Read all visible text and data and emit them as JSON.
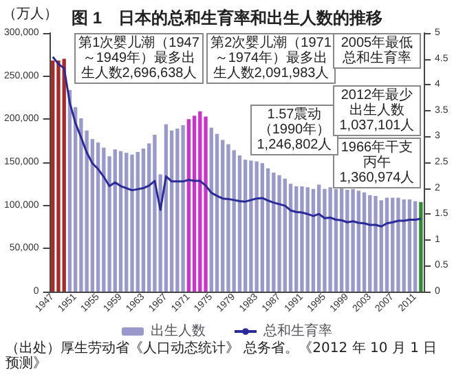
{
  "chart_data": {
    "type": "bar",
    "title": "图 1　日本的总和生育率和出生人数的推移",
    "ylabel": "（万人）",
    "categories": [
      "1947",
      null,
      null,
      null,
      "1951",
      null,
      null,
      null,
      "1955",
      null,
      null,
      null,
      "1959",
      null,
      null,
      null,
      "1963",
      null,
      null,
      null,
      "1967",
      null,
      null,
      null,
      "1971",
      null,
      null,
      null,
      "1975",
      null,
      null,
      null,
      "1979",
      null,
      null,
      null,
      "1983",
      null,
      null,
      null,
      "1987",
      null,
      null,
      null,
      "1991",
      null,
      null,
      null,
      "1995",
      null,
      null,
      null,
      "1999",
      null,
      null,
      null,
      "2003",
      null,
      null,
      null,
      "2007",
      null,
      null,
      null,
      "2011",
      null
    ],
    "series": [
      {
        "name": "出生人数",
        "color": "#9999cc",
        "colors": [
          "#a52a2a",
          "#a52a2a",
          "#a52a2a",
          "#9999cc",
          "#9999cc",
          "#9999cc",
          "#9999cc",
          "#9999cc",
          "#9999cc",
          "#9999cc",
          "#9999cc",
          "#9999cc",
          "#9999cc",
          "#9999cc",
          "#9999cc",
          "#9999cc",
          "#9999cc",
          "#9999cc",
          "#9999cc",
          "#9999cc",
          "#9999cc",
          "#9999cc",
          "#9999cc",
          "#9999cc",
          "#cc33cc",
          "#cc33cc",
          "#cc33cc",
          "#cc33cc",
          "#9999cc",
          "#9999cc",
          "#9999cc",
          "#9999cc",
          "#9999cc",
          "#9999cc",
          "#9999cc",
          "#9999cc",
          "#9999cc",
          "#9999cc",
          "#9999cc",
          "#9999cc",
          "#9999cc",
          "#9999cc",
          "#9999cc",
          "#9999cc",
          "#9999cc",
          "#9999cc",
          "#9999cc",
          "#9999cc",
          "#9999cc",
          "#9999cc",
          "#9999cc",
          "#9999cc",
          "#9999cc",
          "#9999cc",
          "#9999cc",
          "#9999cc",
          "#9999cc",
          "#9999cc",
          "#9999cc",
          "#9999cc",
          "#9999cc",
          "#9999cc",
          "#9999cc",
          "#9999cc",
          "#9999cc",
          "#2e8b2e"
        ],
        "values": [
          268000,
          268000,
          270000,
          234000,
          214000,
          201000,
          187000,
          177000,
          173000,
          167000,
          157000,
          165000,
          163000,
          161000,
          159000,
          162000,
          166000,
          172000,
          182000,
          136000,
          194000,
          187000,
          189000,
          193000,
          200000,
          204000,
          209000,
          203000,
          190000,
          183000,
          176000,
          171000,
          164000,
          158000,
          153000,
          152000,
          151000,
          149000,
          143000,
          138000,
          135000,
          131000,
          125000,
          122000,
          122000,
          121000,
          119000,
          124000,
          119000,
          121000,
          119000,
          120000,
          118000,
          119000,
          117000,
          115000,
          112000,
          111000,
          106000,
          109000,
          109000,
          109000,
          107000,
          107000,
          105000,
          104000
        ]
      },
      {
        "name": "总和生育率",
        "type": "line",
        "axis": "y2",
        "color": "#2a2a9a",
        "values": [
          4.54,
          4.4,
          4.32,
          3.65,
          3.26,
          2.98,
          2.69,
          2.48,
          2.37,
          2.22,
          2.04,
          2.11,
          2.04,
          2.0,
          1.96,
          1.98,
          2.0,
          2.05,
          2.14,
          1.58,
          2.23,
          2.13,
          2.13,
          2.13,
          2.16,
          2.14,
          2.14,
          2.05,
          1.91,
          1.85,
          1.8,
          1.79,
          1.77,
          1.75,
          1.74,
          1.77,
          1.8,
          1.81,
          1.76,
          1.72,
          1.69,
          1.66,
          1.57,
          1.54,
          1.53,
          1.5,
          1.46,
          1.5,
          1.42,
          1.43,
          1.39,
          1.38,
          1.34,
          1.36,
          1.33,
          1.32,
          1.29,
          1.29,
          1.26,
          1.32,
          1.34,
          1.37,
          1.37,
          1.39,
          1.39,
          1.41
        ]
      }
    ],
    "ylim": [
      0,
      300000
    ],
    "yticks": [
      0,
      {
        "value": 50000,
        "label": "50,000"
      },
      {
        "value": 100000,
        "label": "100,000"
      },
      {
        "value": 150000,
        "label": "150,000"
      },
      {
        "value": 200000,
        "label": "200,000"
      },
      {
        "value": 250000,
        "label": "250,000"
      },
      {
        "value": 300000,
        "label": "300,000"
      }
    ],
    "y2lim": [
      0,
      5
    ],
    "y2ticks": [
      0,
      0.5,
      1,
      1.5,
      2,
      2.5,
      3,
      3.5,
      4,
      4.5,
      5
    ],
    "grid": false,
    "legend": "bottom",
    "marker": "none",
    "line_style": "solid",
    "annotations": [
      "第1次婴儿潮（1947～1949年）最多出生人数2,696,638人",
      "第2次婴儿潮（1971～1974年）最多出生人数2,091,983人",
      "1966年干支丙午1,360,974人",
      "1.57震动（1990年）1,246,802人",
      "2005年最低总和生育率",
      "2012年最少出生人数1,037,101人",
      "（出处）厚生劳动省《人口动态统计》 总务省。《2012 年 10 月 1 日预测》"
    ]
  }
}
